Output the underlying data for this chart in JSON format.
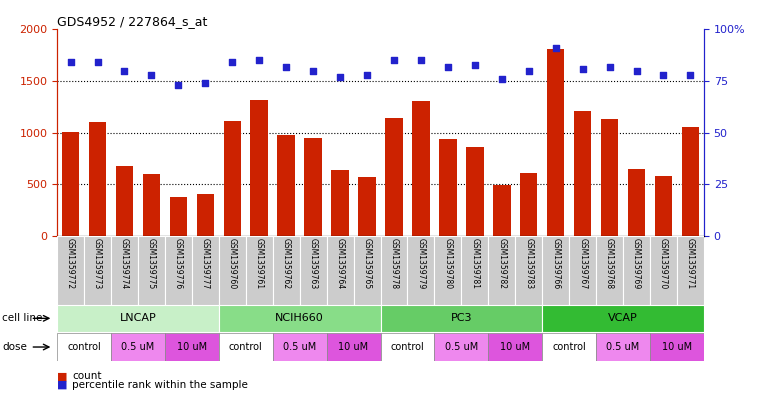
{
  "title": "GDS4952 / 227864_s_at",
  "samples": [
    "GSM1359772",
    "GSM1359773",
    "GSM1359774",
    "GSM1359775",
    "GSM1359776",
    "GSM1359777",
    "GSM1359760",
    "GSM1359761",
    "GSM1359762",
    "GSM1359763",
    "GSM1359764",
    "GSM1359765",
    "GSM1359778",
    "GSM1359779",
    "GSM1359780",
    "GSM1359781",
    "GSM1359782",
    "GSM1359783",
    "GSM1359766",
    "GSM1359767",
    "GSM1359768",
    "GSM1359769",
    "GSM1359770",
    "GSM1359771"
  ],
  "counts": [
    1010,
    1100,
    680,
    600,
    380,
    410,
    1110,
    1320,
    980,
    950,
    640,
    570,
    1140,
    1310,
    940,
    860,
    490,
    610,
    1810,
    1210,
    1130,
    650,
    580,
    1050
  ],
  "percentiles": [
    84,
    84,
    80,
    78,
    73,
    74,
    84,
    85,
    82,
    80,
    77,
    78,
    85,
    85,
    82,
    83,
    76,
    80,
    91,
    81,
    82,
    80,
    78,
    78
  ],
  "cell_lines": [
    {
      "name": "LNCAP",
      "start": 0,
      "end": 6,
      "color": "#c8f0c8"
    },
    {
      "name": "NCIH660",
      "start": 6,
      "end": 12,
      "color": "#88dd88"
    },
    {
      "name": "PC3",
      "start": 12,
      "end": 18,
      "color": "#66cc66"
    },
    {
      "name": "VCAP",
      "start": 18,
      "end": 24,
      "color": "#33bb33"
    }
  ],
  "doses": [
    {
      "name": "control",
      "start": 0,
      "end": 2,
      "color": "#ffffff"
    },
    {
      "name": "0.5 uM",
      "start": 2,
      "end": 4,
      "color": "#ee88ee"
    },
    {
      "name": "10 uM",
      "start": 4,
      "end": 6,
      "color": "#dd55dd"
    },
    {
      "name": "control",
      "start": 6,
      "end": 8,
      "color": "#ffffff"
    },
    {
      "name": "0.5 uM",
      "start": 8,
      "end": 10,
      "color": "#ee88ee"
    },
    {
      "name": "10 uM",
      "start": 10,
      "end": 12,
      "color": "#dd55dd"
    },
    {
      "name": "control",
      "start": 12,
      "end": 14,
      "color": "#ffffff"
    },
    {
      "name": "0.5 uM",
      "start": 14,
      "end": 16,
      "color": "#ee88ee"
    },
    {
      "name": "10 uM",
      "start": 16,
      "end": 18,
      "color": "#dd55dd"
    },
    {
      "name": "control",
      "start": 18,
      "end": 20,
      "color": "#ffffff"
    },
    {
      "name": "0.5 uM",
      "start": 20,
      "end": 22,
      "color": "#ee88ee"
    },
    {
      "name": "10 uM",
      "start": 22,
      "end": 24,
      "color": "#dd55dd"
    }
  ],
  "bar_color": "#cc2200",
  "dot_color": "#2222cc",
  "ylim_left": [
    0,
    2000
  ],
  "ylim_right": [
    0,
    100
  ],
  "yticks_left": [
    0,
    500,
    1000,
    1500,
    2000
  ],
  "yticks_right": [
    0,
    25,
    50,
    75,
    100
  ],
  "ytick_labels_right": [
    "0",
    "25",
    "50",
    "75",
    "100%"
  ],
  "grid_values": [
    500,
    1000,
    1500
  ],
  "background_color": "#ffffff",
  "label_col_color": "#cccccc"
}
